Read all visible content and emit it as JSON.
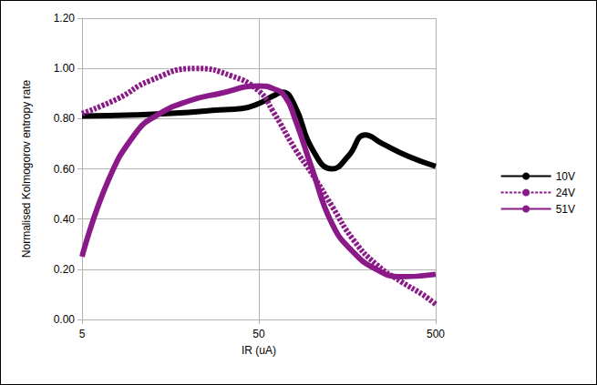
{
  "chart_data": {
    "type": "line",
    "x_label": "IR (uA)",
    "y_label": "Normalised Kolmogorov entropy rate",
    "log": "x",
    "grid": true,
    "legend": "right",
    "xlim": [
      5,
      500
    ],
    "xticks": [
      5,
      50,
      500
    ],
    "ylim": [
      0,
      1.2
    ],
    "yticks": [
      {
        "value": 0,
        "label": "0.00"
      },
      {
        "value": 0.2,
        "label": "0.20"
      },
      {
        "value": 0.4,
        "label": "0.40"
      },
      {
        "value": 0.6,
        "label": "0.60"
      },
      {
        "value": 0.8,
        "label": "0.80"
      },
      {
        "value": 1.0,
        "label": "1.00"
      },
      {
        "value": 1.2,
        "label": "1.20"
      }
    ],
    "series": [
      {
        "name": "10V",
        "color": "#000000",
        "line_style": "solid",
        "marker": "none",
        "x": [
          5,
          10,
          20,
          30,
          40,
          50,
          60,
          68,
          80,
          100,
          130,
          160,
          200,
          250,
          350,
          500
        ],
        "values": [
          0.81,
          0.815,
          0.825,
          0.835,
          0.84,
          0.86,
          0.89,
          0.905,
          0.85,
          0.68,
          0.6,
          0.65,
          0.735,
          0.7,
          0.65,
          0.61
        ]
      },
      {
        "name": "24V",
        "color": "#8b1a89",
        "line_style": "dashed",
        "marker": "none",
        "x": [
          5,
          8,
          12,
          22,
          35,
          50,
          60,
          80,
          100,
          130,
          170,
          230,
          320,
          420,
          500
        ],
        "values": [
          0.82,
          0.88,
          0.95,
          1.0,
          0.97,
          0.91,
          0.83,
          0.68,
          0.58,
          0.45,
          0.32,
          0.22,
          0.15,
          0.1,
          0.06
        ]
      },
      {
        "name": "51V",
        "color": "#8b1a89",
        "line_style": "solid",
        "marker": "none",
        "x": [
          5,
          7,
          10,
          13,
          20,
          30,
          50,
          60,
          70,
          80,
          100,
          130,
          170,
          230,
          320,
          500
        ],
        "values": [
          0.25,
          0.55,
          0.74,
          0.81,
          0.87,
          0.9,
          0.93,
          0.92,
          0.89,
          0.8,
          0.6,
          0.38,
          0.27,
          0.2,
          0.17,
          0.18
        ]
      }
    ]
  }
}
